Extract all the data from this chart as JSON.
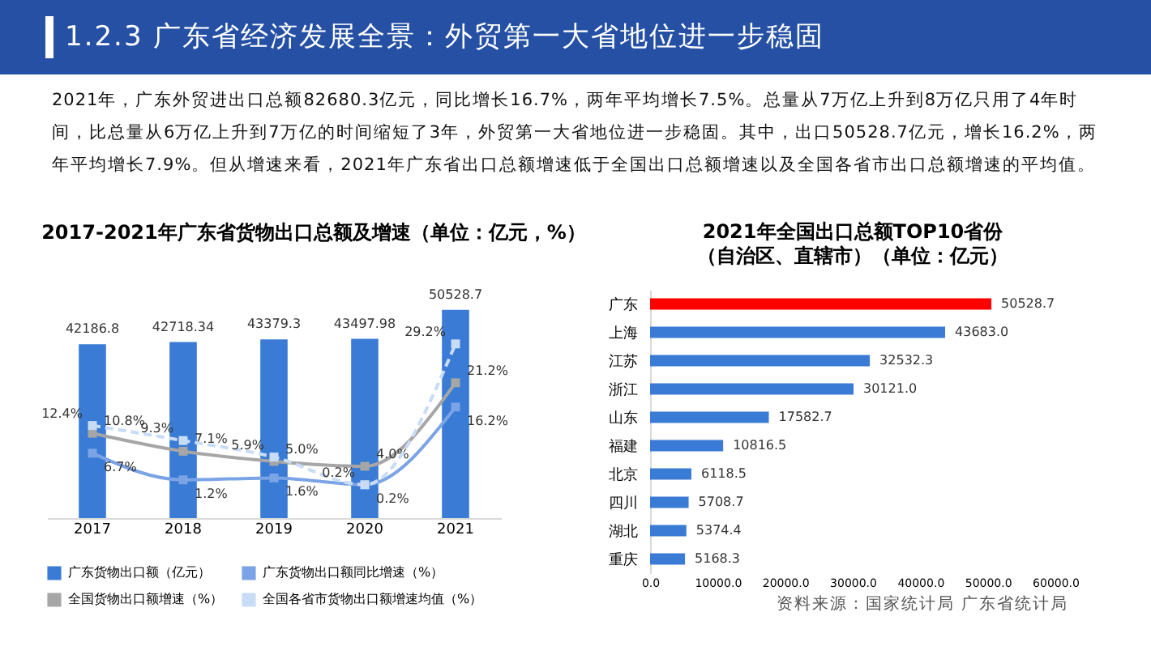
{
  "chart_data": [
    {
      "type": "other",
      "title": "1.2.3 广东省经济发展全景：外贸第一大省地位进一步稳固",
      "annotations": [
        "2021年，广东外贸进出口总额82680.3亿元，同比增长16.7%，两年平均增长7.5%。总量从7万亿上升到8万亿只用了4年时间，比总量从6万亿上升到7万亿的时间缩短了3年，外贸第一大省地位进一步稳固。其中，出口50528.7亿元，增长16.2%，两年平均增长7.9%。但从增速来看，2021年广东省出口总额增速低于全国出口总额增速以及全国各省市出口总额增速的平均值。"
      ]
    },
    {
      "type": "bar",
      "title": "2017-2021年广东省货物出口总额及增速（单位：亿元，%）",
      "categories": [
        "2017",
        "2018",
        "2019",
        "2020",
        "2021"
      ],
      "series": [
        {
          "name": "广东货物出口额（亿元）",
          "type": "bar",
          "color": "#3a7bd5",
          "values": [
            42186.8,
            42718.34,
            43379.3,
            43497.98,
            50528.7
          ]
        },
        {
          "name": "广东货物出口额同比增速（%）",
          "type": "line",
          "axis": "y2",
          "color": "#7ba4e6",
          "values": [
            6.7,
            1.2,
            1.6,
            0.2,
            16.2
          ],
          "value_labels": [
            "6.7%",
            "1.2%",
            "1.6%",
            "0.2%",
            "16.2%"
          ]
        },
        {
          "name": "全国货物出口额增速（%）",
          "type": "line",
          "axis": "y2",
          "color": "#a6a6a6",
          "values": [
            10.8,
            7.1,
            5.0,
            4.0,
            21.2
          ],
          "value_labels": [
            "10.8%",
            "7.1%",
            "5.0%",
            "4.0%",
            "21.2%"
          ]
        },
        {
          "name": "全国各省市货物出口额增速均值（%）",
          "type": "line",
          "axis": "y2",
          "color": "#c9dcf6",
          "line_style": "dashed",
          "values": [
            12.4,
            9.3,
            5.9,
            0.2,
            29.2
          ],
          "value_labels": [
            "12.4%",
            "9.3%",
            "5.9%",
            "0.2%",
            "29.2%"
          ]
        }
      ],
      "data_labels": true,
      "tick_labels": "x",
      "marker": "square",
      "legend": "bottom",
      "grid": false
    },
    {
      "type": "bar",
      "orientation": "horizontal",
      "title": "2021年全国出口总额TOP10省份",
      "subtitle": "（自治区、直辖市）（单位：亿元）",
      "legend": false,
      "categories": [
        "广东",
        "上海",
        "江苏",
        "浙江",
        "山东",
        "福建",
        "北京",
        "四川",
        "湖北",
        "重庆"
      ],
      "values": [
        50528.7,
        43683.0,
        32532.3,
        30121.0,
        17582.7,
        10816.5,
        6118.5,
        5708.7,
        5374.4,
        5168.3
      ],
      "value_labels": [
        "50528.7",
        "43683.0",
        "32532.3",
        "30121.0",
        "17582.7",
        "10816.5",
        "6118.5",
        "5708.7",
        "5374.4",
        "5168.3"
      ],
      "colors": [
        "#ff0000",
        "#3a7bd5",
        "#3a7bd5",
        "#3a7bd5",
        "#3a7bd5",
        "#3a7bd5",
        "#3a7bd5",
        "#3a7bd5",
        "#3a7bd5",
        "#3a7bd5"
      ],
      "xlim": [
        0,
        60000
      ],
      "xticks": [
        {
          "value": 0,
          "label": "0.0"
        },
        {
          "value": 10000,
          "label": "10000.0"
        },
        {
          "value": 20000,
          "label": "20000.0"
        },
        {
          "value": 30000,
          "label": "30000.0"
        },
        {
          "value": 40000,
          "label": "40000.0"
        },
        {
          "value": 50000,
          "label": "50000.0"
        },
        {
          "value": 60000,
          "label": "60000.0"
        }
      ],
      "grid": false,
      "annotations": [
        "资料来源：国家统计局 广东省统计局"
      ]
    }
  ]
}
